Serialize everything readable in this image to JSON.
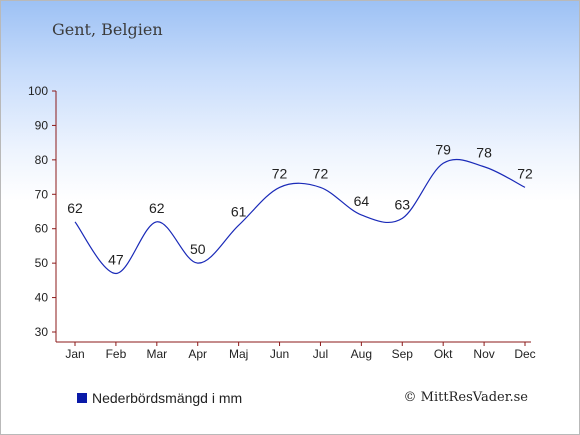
{
  "location": "Gent, Belgien",
  "legend": {
    "label": "Nederbördsmängd i mm",
    "color": "#0a1aa8"
  },
  "copyright": "© MittResVader.se",
  "chart_data": {
    "type": "line",
    "categories": [
      "Jan",
      "Feb",
      "Mar",
      "Apr",
      "Maj",
      "Jun",
      "Jul",
      "Aug",
      "Sep",
      "Okt",
      "Nov",
      "Dec"
    ],
    "series": [
      {
        "name": "Nederbördsmängd i mm",
        "values": [
          62,
          47,
          62,
          50,
          61,
          72,
          72,
          64,
          63,
          79,
          78,
          72
        ],
        "color": "#1a2ab8"
      }
    ],
    "ylim": [
      30,
      100
    ],
    "yticks": [
      30,
      40,
      50,
      60,
      70,
      80,
      90,
      100
    ],
    "data_labels": true,
    "grid": false,
    "title": "",
    "xlabel": "",
    "ylabel": ""
  }
}
